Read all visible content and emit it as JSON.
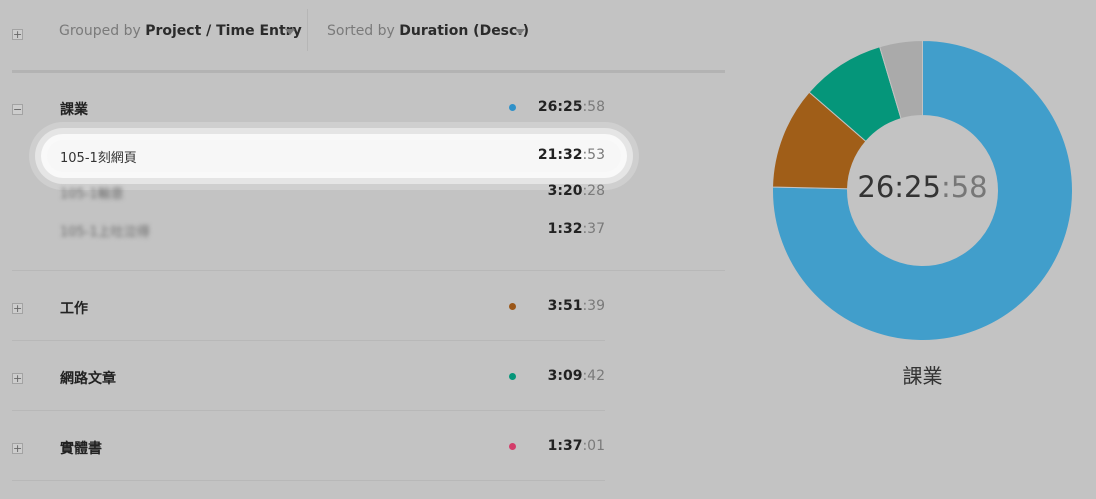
{
  "toolbar": {
    "grouped_prefix": "Grouped by",
    "grouped_value": "Project / Time Entry",
    "sorted_prefix": "Sorted by",
    "sorted_value": "Duration (Desc.)"
  },
  "projects": [
    {
      "name": "課業",
      "color": "#2f91c9",
      "duration_hm": "26:25",
      "duration_sec": ":58",
      "entries": [
        {
          "name": "105-1刻網頁",
          "duration_hm": "21:32",
          "duration_sec": ":53"
        },
        {
          "name": "105-1輸意",
          "duration_hm": "3:20",
          "duration_sec": ":28"
        },
        {
          "name": "105-1上吐泣得",
          "duration_hm": "1:32",
          "duration_sec": ":37"
        }
      ]
    },
    {
      "name": "工作",
      "color": "#9b5718",
      "duration_hm": "3:51",
      "duration_sec": ":39"
    },
    {
      "name": "網路文章",
      "color": "#05967a",
      "duration_hm": "3:09",
      "duration_sec": ":42"
    },
    {
      "name": "實體書",
      "color": "#d33d6a",
      "duration_hm": "1:37",
      "duration_sec": ":01"
    }
  ],
  "donut": {
    "center_hm": "26:25",
    "center_sec": ":58",
    "label": "課業",
    "slices": [
      {
        "project": "課業",
        "seconds": 95158,
        "color": "#419ecb"
      },
      {
        "project": "工作",
        "seconds": 13899,
        "color": "#a05e18"
      },
      {
        "project": "網路文章",
        "seconds": 11382,
        "color": "#05967a"
      },
      {
        "project": "實體書",
        "seconds": 5821,
        "color": "#aaaaaa"
      }
    ]
  }
}
